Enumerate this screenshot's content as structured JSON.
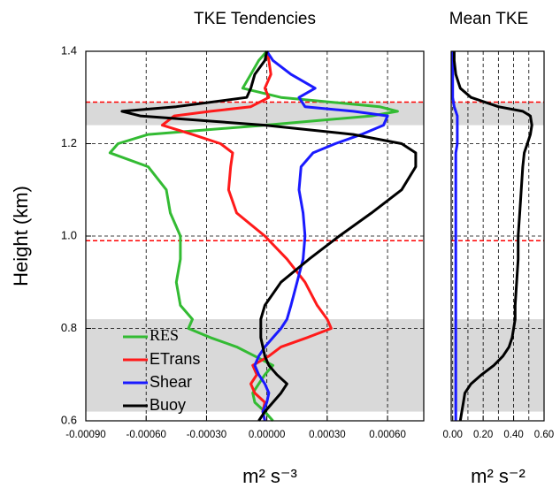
{
  "chart_data": [
    {
      "type": "line",
      "title": "TKE Tendencies",
      "xlabel": "m² s⁻³",
      "ylabel": "Height (km)",
      "xlim": [
        -0.0009,
        0.00078
      ],
      "ylim": [
        0.6,
        1.4
      ],
      "xticks": [
        {
          "value": -0.0009,
          "label": "-0.00090"
        },
        {
          "value": -0.0006,
          "label": "-0.00060"
        },
        {
          "value": -0.0003,
          "label": "-0.00030"
        },
        {
          "value": 0,
          "label": "0.00000"
        },
        {
          "value": 0.0003,
          "label": "0.00030"
        },
        {
          "value": 0.0006,
          "label": "0.00060"
        }
      ],
      "yticks": [
        0.6,
        0.8,
        {
          "value": 1,
          "label": "1.0"
        },
        1.2,
        1.4
      ],
      "show_ytick_labels": true,
      "grid": true,
      "legend": "lower left",
      "shaded_bands": [
        [
          0.62,
          0.82
        ],
        [
          1.24,
          1.29
        ]
      ],
      "ref_lines": {
        "color": "#ff0000",
        "values": [
          1.29,
          0.99
        ]
      },
      "y": [
        0.6,
        0.62,
        0.64,
        0.66,
        0.68,
        0.7,
        0.72,
        0.74,
        0.76,
        0.78,
        0.8,
        0.82,
        0.85,
        0.9,
        0.95,
        1.0,
        1.05,
        1.1,
        1.15,
        1.18,
        1.2,
        1.22,
        1.24,
        1.26,
        1.27,
        1.28,
        1.3,
        1.32,
        1.35,
        1.38,
        1.4
      ],
      "series": [
        {
          "name": "RES",
          "color": "#33bb33",
          "values": [
            3e-05,
            -1e-05,
            -6e-05,
            -7e-05,
            -4e-05,
            -1e-05,
            3e-05,
            -6e-05,
            -0.00015,
            -0.00028,
            -0.00039,
            -0.00037,
            -0.00043,
            -0.00045,
            -0.00043,
            -0.00043,
            -0.00048,
            -0.0005,
            -0.00059,
            -0.00078,
            -0.00074,
            -0.00059,
            -1e-05,
            0.00052,
            0.00065,
            0.00056,
            7e-05,
            -0.00012,
            -8e-05,
            -4e-05,
            0
          ]
        },
        {
          "name": "ETrans",
          "color": "#ff1a1a",
          "values": [
            -1e-05,
            -2e-05,
            -1e-05,
            -6e-05,
            -8e-05,
            -5e-05,
            -7e-05,
            1e-05,
            7e-05,
            0.0002,
            0.00032,
            0.0003,
            0.00025,
            0.00019,
            0.0001,
            -1e-05,
            -0.00015,
            -0.00019,
            -0.00018,
            -0.00017,
            -0.00023,
            -0.00037,
            -0.00052,
            -0.00046,
            -0.00028,
            -8e-05,
            1e-05,
            -1e-05,
            2e-05,
            1e-05,
            0
          ]
        },
        {
          "name": "Shear",
          "color": "#1a1aff",
          "values": [
            -1e-05,
            -2e-05,
            0,
            1e-05,
            -1e-05,
            -4e-05,
            -6e-05,
            -4e-05,
            -1e-05,
            3e-05,
            7e-05,
            0.0001,
            0.00012,
            0.00015,
            0.00018,
            0.00019,
            0.00018,
            0.00016,
            0.00017,
            0.00023,
            0.00034,
            0.00047,
            0.00058,
            0.0006,
            0.00043,
            0.00019,
            0.00016,
            0.00024,
            0.00012,
            3e-05,
            0
          ]
        },
        {
          "name": "Buoy",
          "color": "#000000",
          "values": [
            -4e-05,
            -1e-05,
            3e-05,
            7e-05,
            0.0001,
            5e-05,
            1e-05,
            -1e-05,
            -2e-05,
            -3e-05,
            -3e-05,
            -3e-05,
            -1e-05,
            7e-05,
            0.00021,
            0.00036,
            0.00052,
            0.00067,
            0.00074,
            0.00074,
            0.00067,
            0.00043,
            -1e-05,
            -0.00063,
            -0.00072,
            -0.00045,
            -0.0001,
            -8e-05,
            -6e-05,
            -1e-05,
            0
          ]
        }
      ]
    },
    {
      "type": "line",
      "title": "Mean TKE",
      "xlabel": "m² s⁻²",
      "xlim": [
        -0.01,
        0.6
      ],
      "ylim": [
        0.6,
        1.4
      ],
      "xticks": [
        {
          "value": 0,
          "label": "0.00"
        },
        {
          "value": 0.2,
          "label": "0.20"
        },
        {
          "value": 0.4,
          "label": "0.40"
        },
        {
          "value": 0.6,
          "label": "0.60"
        }
      ],
      "minor_xticks": [
        0.1,
        0.3,
        0.5
      ],
      "yticks": [
        0.6,
        0.8,
        1,
        1.2,
        1.4
      ],
      "show_ytick_labels": false,
      "grid": true,
      "shaded_bands": [
        [
          0.62,
          0.82
        ],
        [
          1.24,
          1.29
        ]
      ],
      "ref_lines": {
        "color": "#ff0000",
        "values": [
          1.29,
          0.99
        ]
      },
      "y": [
        0.6,
        0.62,
        0.64,
        0.66,
        0.68,
        0.7,
        0.72,
        0.74,
        0.76,
        0.78,
        0.8,
        0.82,
        0.85,
        0.9,
        0.95,
        1.0,
        1.05,
        1.1,
        1.15,
        1.18,
        1.2,
        1.22,
        1.24,
        1.26,
        1.27,
        1.28,
        1.3,
        1.32,
        1.35,
        1.38,
        1.4
      ],
      "series": [
        {
          "color": "#1a1aff",
          "values": [
            0.02,
            0.02,
            0.02,
            0.02,
            0.02,
            0.02,
            0.02,
            0.02,
            0.02,
            0.02,
            0.02,
            0.02,
            0.02,
            0.02,
            0.02,
            0.02,
            0.02,
            0.02,
            0.02,
            0.02,
            0.03,
            0.03,
            0.03,
            0.03,
            0.02,
            0.01,
            0,
            0,
            0,
            0,
            0
          ]
        },
        {
          "color": "#000000",
          "values": [
            0.05,
            0.06,
            0.07,
            0.08,
            0.12,
            0.19,
            0.27,
            0.33,
            0.37,
            0.39,
            0.4,
            0.41,
            0.41,
            0.42,
            0.43,
            0.43,
            0.44,
            0.45,
            0.46,
            0.47,
            0.49,
            0.51,
            0.52,
            0.51,
            0.46,
            0.3,
            0.12,
            0.05,
            0.02,
            0.01,
            0.01
          ]
        }
      ]
    }
  ]
}
